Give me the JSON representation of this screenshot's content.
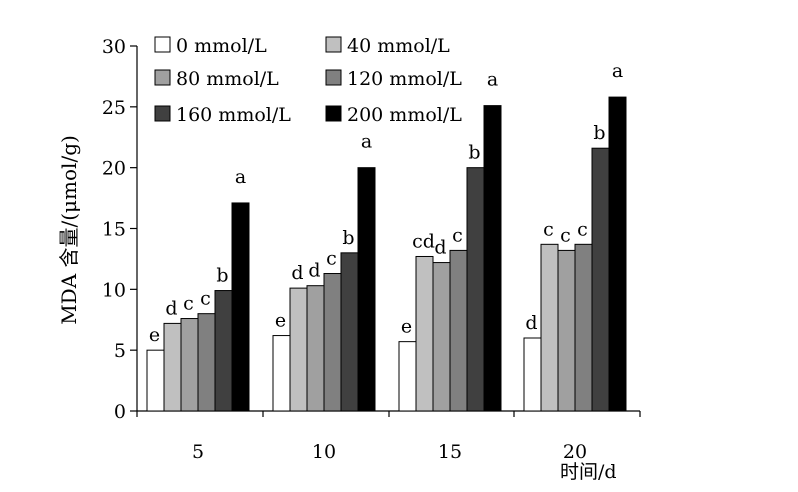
{
  "chart_data": {
    "type": "bar",
    "title": "",
    "xlabel": "时间/d",
    "ylabel": "MDA 含量/(μmol/g)",
    "ylim": [
      0,
      30
    ],
    "yticks": [
      0,
      5,
      10,
      15,
      20,
      25,
      30
    ],
    "categories": [
      "5",
      "10",
      "15",
      "20"
    ],
    "legend_position": "top-left",
    "series": [
      {
        "name": "0 mmol/L",
        "color": "#ffffff",
        "values": [
          5.0,
          6.2,
          5.7,
          6.0
        ],
        "labels": [
          "e",
          "e",
          "e",
          "d"
        ]
      },
      {
        "name": "40 mmol/L",
        "color": "#c0c0c0",
        "values": [
          7.2,
          10.1,
          12.7,
          13.7
        ],
        "labels": [
          "d",
          "d",
          "cd",
          "c"
        ]
      },
      {
        "name": "80 mmol/L",
        "color": "#a0a0a0",
        "values": [
          7.6,
          10.3,
          12.2,
          13.2
        ],
        "labels": [
          "c",
          "d",
          "d",
          "c"
        ]
      },
      {
        "name": "120 mmol/L",
        "color": "#808080",
        "values": [
          8.0,
          11.3,
          13.2,
          13.7
        ],
        "labels": [
          "c",
          "c",
          "c",
          "c"
        ]
      },
      {
        "name": "160 mmol/L",
        "color": "#404040",
        "values": [
          9.9,
          13.0,
          20.0,
          21.6
        ],
        "labels": [
          "b",
          "b",
          "b",
          "b"
        ]
      },
      {
        "name": "200 mmol/L",
        "color": "#000000",
        "values": [
          17.1,
          20.0,
          25.1,
          25.8
        ],
        "labels": [
          "a",
          "a",
          "a",
          "a"
        ]
      }
    ]
  }
}
